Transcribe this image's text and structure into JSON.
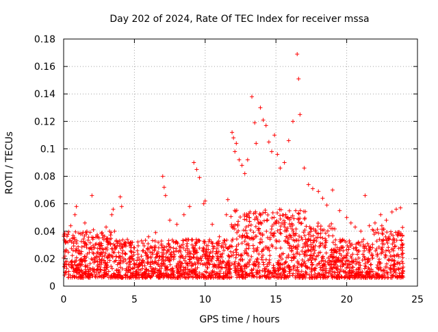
{
  "chart_data": {
    "type": "scatter",
    "title": "Day 202 of 2024, Rate Of TEC Index for receiver mssa",
    "xlabel": "GPS time / hours",
    "ylabel": "ROTI / TECUs",
    "xlim": [
      0,
      25
    ],
    "ylim": [
      0,
      0.18
    ],
    "x_ticks": [
      0,
      5,
      10,
      15,
      20,
      25
    ],
    "x_tick_labels": [
      "0",
      "5",
      "10",
      "15",
      "20",
      "25"
    ],
    "y_ticks": [
      0,
      0.02,
      0.04,
      0.06,
      0.08,
      0.1,
      0.12,
      0.14,
      0.16,
      0.18
    ],
    "y_tick_labels": [
      "0",
      "0.02",
      "0.04",
      "0.06",
      "0.08",
      "0.1",
      "0.12",
      "0.14",
      "0.16",
      "0.18"
    ],
    "grid": true,
    "marker": "+",
    "color": "#ff0000",
    "series": [
      {
        "name": "ROTI",
        "x": [
          0.1,
          0.3,
          0.5,
          0.8,
          0.9,
          1.2,
          1.5,
          2.0,
          2.1,
          2.5,
          3.0,
          3.4,
          3.5,
          3.6,
          4.0,
          4.1,
          4.5,
          5.0,
          5.5,
          6.0,
          6.5,
          7.0,
          7.1,
          7.2,
          7.5,
          8.0,
          8.5,
          8.9,
          9.2,
          9.4,
          9.6,
          9.9,
          10.0,
          10.5,
          11.0,
          11.5,
          11.6,
          11.9,
          12.0,
          12.1,
          12.2,
          12.4,
          12.6,
          12.8,
          13.0,
          13.3,
          13.5,
          13.6,
          13.9,
          14.1,
          14.3,
          14.5,
          14.7,
          14.9,
          15.1,
          15.3,
          15.6,
          15.9,
          16.2,
          16.5,
          16.6,
          16.7,
          17.0,
          17.3,
          17.6,
          18.0,
          18.3,
          18.6,
          19.0,
          19.5,
          20.0,
          20.3,
          20.6,
          21.0,
          21.3,
          21.6,
          22.0,
          22.4,
          22.8,
          23.2,
          23.5,
          23.8
        ],
        "y": [
          0.025,
          0.032,
          0.044,
          0.052,
          0.058,
          0.038,
          0.046,
          0.066,
          0.041,
          0.035,
          0.043,
          0.052,
          0.056,
          0.04,
          0.065,
          0.058,
          0.034,
          0.028,
          0.033,
          0.036,
          0.039,
          0.08,
          0.072,
          0.066,
          0.048,
          0.045,
          0.052,
          0.058,
          0.09,
          0.085,
          0.079,
          0.06,
          0.062,
          0.045,
          0.036,
          0.052,
          0.063,
          0.112,
          0.108,
          0.098,
          0.104,
          0.092,
          0.088,
          0.082,
          0.092,
          0.138,
          0.119,
          0.104,
          0.13,
          0.121,
          0.117,
          0.105,
          0.098,
          0.11,
          0.096,
          0.086,
          0.09,
          0.106,
          0.12,
          0.169,
          0.151,
          0.125,
          0.086,
          0.074,
          0.071,
          0.069,
          0.064,
          0.059,
          0.07,
          0.055,
          0.05,
          0.046,
          0.043,
          0.04,
          0.066,
          0.044,
          0.046,
          0.052,
          0.048,
          0.054,
          0.056,
          0.057
        ]
      }
    ]
  }
}
